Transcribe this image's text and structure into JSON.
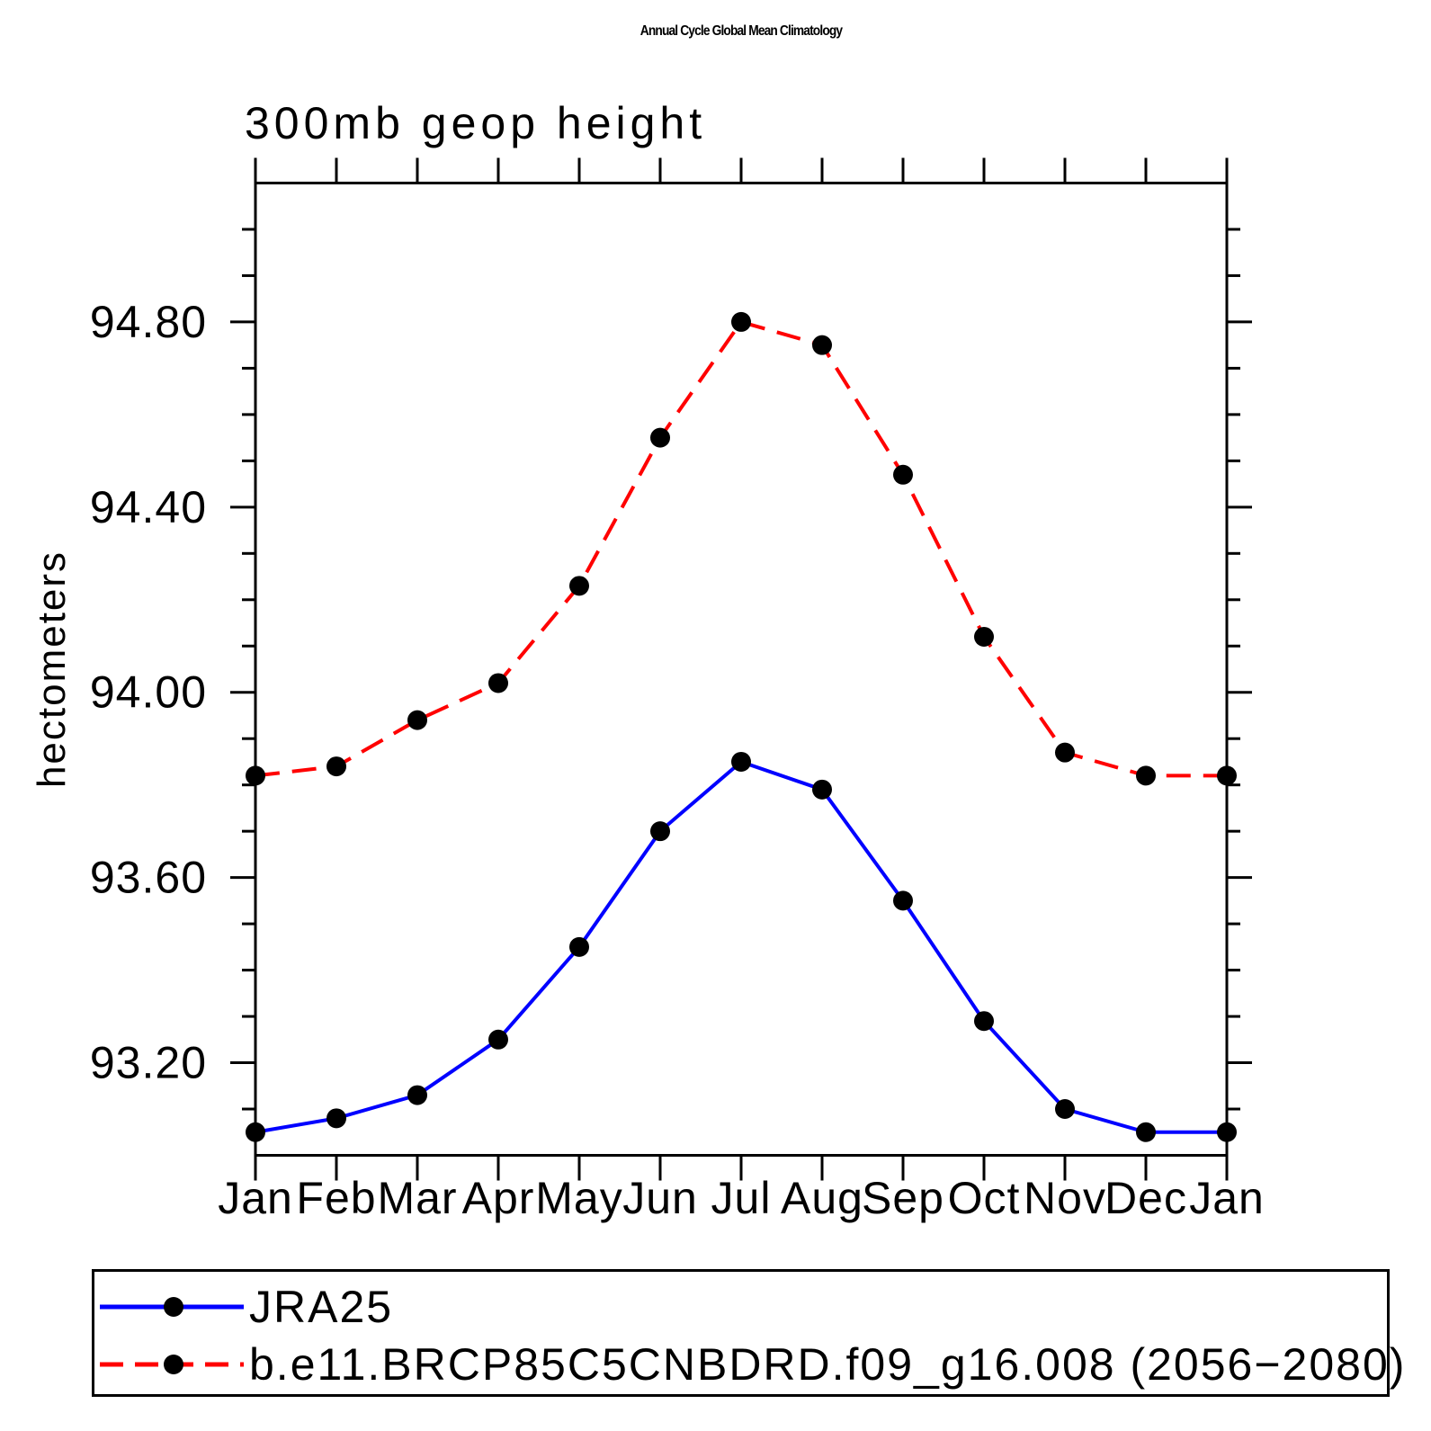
{
  "chart_data": {
    "type": "line",
    "title": "Annual Cycle Global Mean Climatology",
    "subtitle": "300mb geop height",
    "ylabel": "hectometers",
    "xlabel": "",
    "categories": [
      "Jan",
      "Feb",
      "Mar",
      "Apr",
      "May",
      "Jun",
      "Jul",
      "Aug",
      "Sep",
      "Oct",
      "Nov",
      "Dec",
      "Jan"
    ],
    "series": [
      {
        "name": "JRA25",
        "color": "#0000ff",
        "line_style": "solid",
        "marker": "filled-circle",
        "marker_color": "#000000",
        "values": [
          93.05,
          93.08,
          93.13,
          93.25,
          93.45,
          93.7,
          93.85,
          93.79,
          93.55,
          93.29,
          93.1,
          93.05,
          93.05
        ]
      },
      {
        "name": "b.e11.BRCP85C5CNBDRD.f09_g16.008 (2056−2080)",
        "color": "#ff0000",
        "line_style": "dashed",
        "marker": "filled-circle",
        "marker_color": "#000000",
        "values": [
          93.82,
          93.84,
          93.94,
          94.02,
          94.23,
          94.55,
          94.8,
          94.75,
          94.47,
          94.12,
          93.87,
          93.82,
          93.82
        ]
      }
    ],
    "ylim": [
      93.0,
      95.1
    ],
    "ytick_major": [
      93.2,
      93.6,
      94.0,
      94.4,
      94.8
    ],
    "ytick_labels": [
      "93.20",
      "93.60",
      "94.00",
      "94.40",
      "94.80"
    ],
    "ytick_minor_step": 0.1,
    "grid": false,
    "legend_position": "bottom-left-box",
    "axis_color": "#000000"
  }
}
